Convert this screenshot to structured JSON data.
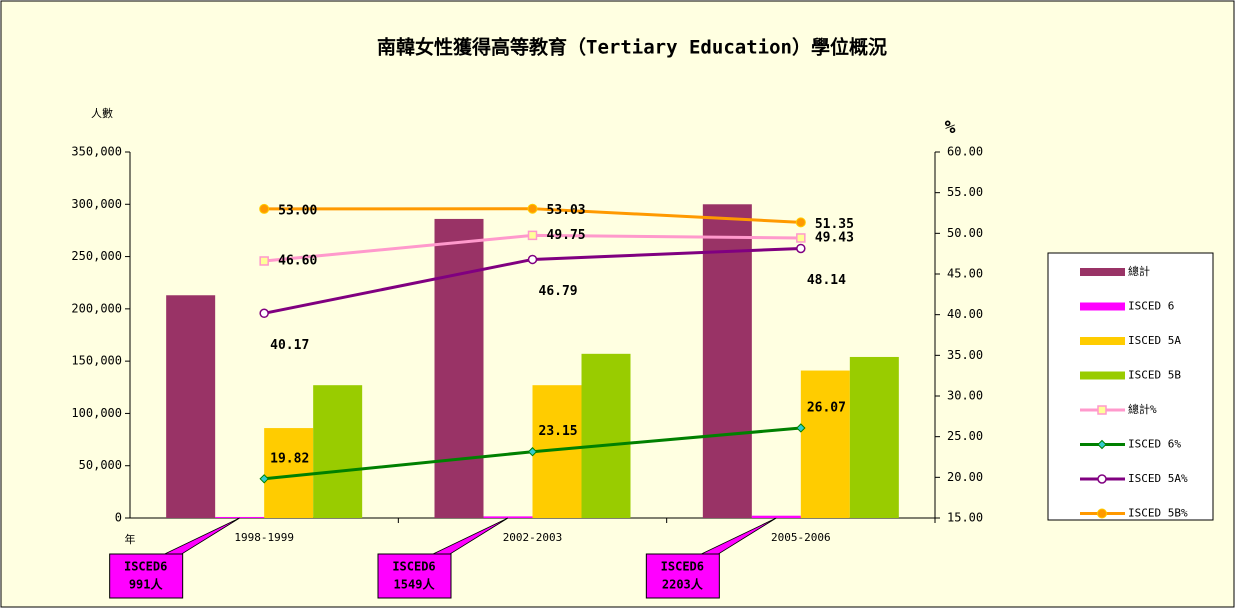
{
  "chart_data": {
    "type": "bar",
    "title": "南韓女性獲得高等教育（Tertiary Education）學位概況",
    "y_label": "人數",
    "y2_label": "%",
    "x_label": "年",
    "categories": [
      "1998-1999",
      "2002-2003",
      "2005-2006"
    ],
    "ylim": [
      0,
      350000
    ],
    "yticks": [
      0,
      {
        "value": 50000,
        "label": "50,000"
      },
      {
        "value": 100000,
        "label": "100,000"
      },
      {
        "value": 150000,
        "label": "150,000"
      },
      {
        "value": 200000,
        "label": "200,000"
      },
      {
        "value": 250000,
        "label": "250,000"
      },
      {
        "value": 300000,
        "label": "300,000"
      },
      {
        "value": 350000,
        "label": "350,000"
      }
    ],
    "y2lim": [
      15,
      60
    ],
    "y2ticks": [
      {
        "value": 15,
        "label": "15.00"
      },
      {
        "value": 20,
        "label": "20.00"
      },
      {
        "value": 25,
        "label": "25.00"
      },
      {
        "value": 30,
        "label": "30.00"
      },
      {
        "value": 35,
        "label": "35.00"
      },
      {
        "value": 40,
        "label": "40.00"
      },
      {
        "value": 45,
        "label": "45.00"
      },
      {
        "value": 50,
        "label": "50.00"
      },
      {
        "value": 55,
        "label": "55.00"
      },
      {
        "value": 60,
        "label": "60.00"
      }
    ],
    "callout_label": "ISCED6",
    "series": [
      {
        "name": "總計",
        "kind": "bar",
        "color": "#993366",
        "values": [
          213000,
          286000,
          300000
        ]
      },
      {
        "name": "ISCED 6",
        "kind": "bar",
        "color": "#ff00ff",
        "values": [
          991,
          1549,
          2203
        ],
        "value_labels": [
          "991人",
          "1549人",
          "2203人"
        ]
      },
      {
        "name": "ISCED 5A",
        "kind": "bar",
        "color": "#ffcc00",
        "values": [
          86000,
          127000,
          141000
        ]
      },
      {
        "name": "ISCED 5B",
        "kind": "bar",
        "color": "#99cc00",
        "values": [
          127000,
          157000,
          154000
        ]
      },
      {
        "name": "總計%",
        "kind": "line",
        "axis": "y2",
        "color": "#ff99cc",
        "marker": "square",
        "values": [
          46.6,
          49.75,
          49.43
        ],
        "value_labels": [
          "46.60",
          "49.75",
          "49.43"
        ]
      },
      {
        "name": "ISCED 6%",
        "kind": "line",
        "axis": "y2",
        "color": "#008000",
        "marker": "diamond",
        "values": [
          19.82,
          23.15,
          26.07
        ],
        "value_labels": [
          "19.82",
          "23.15",
          "26.07"
        ]
      },
      {
        "name": "ISCED 5A%",
        "kind": "line",
        "axis": "y2",
        "color": "#800080",
        "marker": "circle",
        "values": [
          40.17,
          46.79,
          48.14
        ],
        "value_labels": [
          "40.17",
          "46.79",
          "48.14"
        ]
      },
      {
        "name": "ISCED 5B%",
        "kind": "line",
        "axis": "y2",
        "color": "#ff9900",
        "marker": "dot",
        "values": [
          53.0,
          53.03,
          51.35
        ],
        "value_labels": [
          "53.00",
          "53.03",
          "51.35"
        ]
      }
    ]
  }
}
